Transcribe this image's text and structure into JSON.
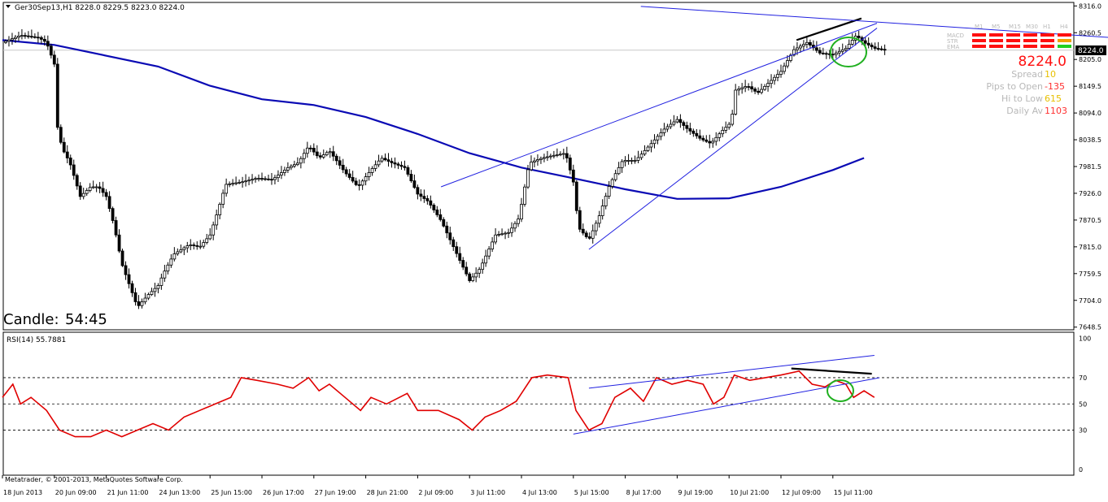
{
  "main_header": "Ger30Sep13,H1  8228.0 8229.5 8223.0 8224.0",
  "rsi_header": "RSI(14) 55.7881",
  "candle_timer": {
    "label": "Candle:",
    "value": "54:45"
  },
  "copyright": "Metatrader, © 2001-2013, MetaQuotes Software Corp.",
  "current_price_tag": "8224.0",
  "colors": {
    "candles": "#000000",
    "ma": "#0a0ab4",
    "trendlines": "#2020e0",
    "rsi": "#e00000",
    "circle": "#20b020",
    "price_line": "#c8c8c8"
  },
  "panel": {
    "timeframes": [
      "M1",
      "M5",
      "M15",
      "M30",
      "H1",
      "H4"
    ],
    "indicators": [
      "MACD",
      "STR",
      "EMA"
    ],
    "signals": [
      [
        "red",
        "red",
        "red",
        "red",
        "red",
        "red"
      ],
      [
        "red",
        "red",
        "red",
        "red",
        "red",
        "orange"
      ],
      [
        "red",
        "red",
        "red",
        "red",
        "red",
        "green"
      ]
    ],
    "big_price": "8224.0",
    "stats": [
      {
        "label": "Spread",
        "value": "10",
        "color": "#e8c000"
      },
      {
        "label": "Pips to Open",
        "value": "-135",
        "color": "#ff3030"
      },
      {
        "label": "Hi to Low",
        "value": "615",
        "color": "#e8c000"
      },
      {
        "label": "Daily Av",
        "value": "1103",
        "color": "#ff3030"
      }
    ]
  },
  "chart_data": [
    {
      "type": "candlestick",
      "symbol": "Ger30Sep13",
      "timeframe": "H1",
      "ohlc_last": {
        "open": 8228.0,
        "high": 8229.5,
        "low": 8223.0,
        "close": 8224.0
      },
      "y_tick_labels": [
        "8316.0",
        "8260.5",
        "8205.0",
        "8149.5",
        "8094.0",
        "8038.5",
        "7981.5",
        "7926.0",
        "7870.5",
        "7815.0",
        "7759.5",
        "7704.0",
        "7648.5"
      ],
      "x_tick_labels": [
        "18 Jun 2013",
        "20 Jun 09:00",
        "21 Jun 11:00",
        "24 Jun 13:00",
        "25 Jun 15:00",
        "26 Jun 17:00",
        "27 Jun 19:00",
        "28 Jun 21:00",
        "2 Jul 09:00",
        "3 Jul 11:00",
        "4 Jul 13:00",
        "5 Jul 15:00",
        "8 Jul 17:00",
        "9 Jul 19:00",
        "10 Jul 21:00",
        "12 Jul 09:00",
        "15 Jul 11:00"
      ],
      "ylim": [
        7630,
        8325
      ],
      "close_path": [
        [
          0,
          8240
        ],
        [
          0.35,
          8255
        ],
        [
          0.7,
          8250
        ],
        [
          0.85,
          8240
        ],
        [
          1.0,
          8195
        ],
        [
          1.05,
          8070
        ],
        [
          1.15,
          8020
        ],
        [
          1.3,
          7990
        ],
        [
          1.5,
          7920
        ],
        [
          1.7,
          7940
        ],
        [
          1.85,
          7940
        ],
        [
          2.0,
          7920
        ],
        [
          2.15,
          7860
        ],
        [
          2.3,
          7780
        ],
        [
          2.6,
          7690
        ],
        [
          2.8,
          7715
        ],
        [
          3.0,
          7735
        ],
        [
          3.1,
          7760
        ],
        [
          3.3,
          7800
        ],
        [
          3.6,
          7820
        ],
        [
          3.8,
          7815
        ],
        [
          4.0,
          7840
        ],
        [
          4.15,
          7890
        ],
        [
          4.3,
          7945
        ],
        [
          4.6,
          7950
        ],
        [
          4.9,
          7958
        ],
        [
          5.2,
          7955
        ],
        [
          5.5,
          7980
        ],
        [
          5.7,
          7990
        ],
        [
          5.9,
          8025
        ],
        [
          6.1,
          8000
        ],
        [
          6.3,
          8015
        ],
        [
          6.6,
          7970
        ],
        [
          6.85,
          7940
        ],
        [
          7.1,
          7975
        ],
        [
          7.3,
          8000
        ],
        [
          7.5,
          7990
        ],
        [
          7.75,
          7980
        ],
        [
          8.0,
          7925
        ],
        [
          8.2,
          7910
        ],
        [
          8.45,
          7870
        ],
        [
          8.8,
          7790
        ],
        [
          9.0,
          7745
        ],
        [
          9.2,
          7770
        ],
        [
          9.5,
          7840
        ],
        [
          9.75,
          7845
        ],
        [
          9.95,
          7875
        ],
        [
          10.15,
          7990
        ],
        [
          10.4,
          8000
        ],
        [
          10.6,
          8005
        ],
        [
          10.85,
          8010
        ],
        [
          11.0,
          7950
        ],
        [
          11.1,
          7855
        ],
        [
          11.3,
          7830
        ],
        [
          11.5,
          7880
        ],
        [
          11.7,
          7945
        ],
        [
          11.95,
          7995
        ],
        [
          12.2,
          7995
        ],
        [
          12.5,
          8030
        ],
        [
          12.75,
          8060
        ],
        [
          13.0,
          8080
        ],
        [
          13.2,
          8060
        ],
        [
          13.45,
          8040
        ],
        [
          13.65,
          8030
        ],
        [
          13.85,
          8055
        ],
        [
          14.05,
          8075
        ],
        [
          14.1,
          8140
        ],
        [
          14.35,
          8150
        ],
        [
          14.55,
          8135
        ],
        [
          14.8,
          8160
        ],
        [
          15.0,
          8180
        ],
        [
          15.25,
          8225
        ],
        [
          15.5,
          8240
        ],
        [
          15.75,
          8218
        ],
        [
          16.0,
          8215
        ],
        [
          16.25,
          8228
        ],
        [
          16.45,
          8255
        ],
        [
          16.6,
          8240
        ],
        [
          16.8,
          8228
        ],
        [
          17.05,
          8224
        ]
      ],
      "moving_average": [
        [
          0,
          8245
        ],
        [
          1.0,
          8235
        ],
        [
          3.0,
          8190
        ],
        [
          4.0,
          8150
        ],
        [
          5.0,
          8122
        ],
        [
          6.0,
          8110
        ],
        [
          7.0,
          8085
        ],
        [
          8.0,
          8050
        ],
        [
          9.0,
          8010
        ],
        [
          10.0,
          7980
        ],
        [
          11.0,
          7958
        ],
        [
          12.0,
          7935
        ],
        [
          13.0,
          7915
        ],
        [
          14.0,
          7916
        ],
        [
          15.0,
          7940
        ],
        [
          16.0,
          7975
        ],
        [
          16.6,
          8000
        ]
      ],
      "trendlines": [
        {
          "color": "black",
          "from": [
            15.3,
            8245
          ],
          "to": [
            16.55,
            8290
          ]
        },
        {
          "color": "blue",
          "from": [
            12.3,
            8315
          ],
          "to": [
            21.4,
            8250
          ]
        },
        {
          "color": "blue",
          "from": [
            8.45,
            7940
          ],
          "to": [
            16.85,
            8280
          ]
        },
        {
          "color": "blue",
          "from": [
            11.3,
            7810
          ],
          "to": [
            16.85,
            8270
          ]
        }
      ],
      "current_price": 8224.0
    },
    {
      "type": "line",
      "name": "RSI(14)",
      "last_value": 55.7881,
      "y_tick_labels": [
        "100",
        "70",
        "50",
        "30",
        "0"
      ],
      "ylim": [
        0,
        100
      ],
      "levels": [
        70,
        50,
        30
      ],
      "values": [
        [
          0,
          55
        ],
        [
          0.2,
          65
        ],
        [
          0.35,
          50
        ],
        [
          0.55,
          55
        ],
        [
          0.85,
          45
        ],
        [
          1.1,
          30
        ],
        [
          1.4,
          25
        ],
        [
          1.7,
          25
        ],
        [
          2.0,
          30
        ],
        [
          2.3,
          25
        ],
        [
          2.6,
          30
        ],
        [
          2.9,
          35
        ],
        [
          3.2,
          30
        ],
        [
          3.5,
          40
        ],
        [
          3.8,
          45
        ],
        [
          4.1,
          50
        ],
        [
          4.4,
          55
        ],
        [
          4.6,
          70
        ],
        [
          4.9,
          68
        ],
        [
          5.3,
          65
        ],
        [
          5.6,
          62
        ],
        [
          5.9,
          70
        ],
        [
          6.1,
          60
        ],
        [
          6.3,
          65
        ],
        [
          6.6,
          55
        ],
        [
          6.9,
          45
        ],
        [
          7.1,
          55
        ],
        [
          7.4,
          50
        ],
        [
          7.8,
          58
        ],
        [
          8.0,
          45
        ],
        [
          8.4,
          45
        ],
        [
          8.8,
          38
        ],
        [
          9.05,
          30
        ],
        [
          9.3,
          40
        ],
        [
          9.6,
          45
        ],
        [
          9.9,
          52
        ],
        [
          10.2,
          70
        ],
        [
          10.5,
          72
        ],
        [
          10.9,
          70
        ],
        [
          11.05,
          45
        ],
        [
          11.3,
          30
        ],
        [
          11.55,
          35
        ],
        [
          11.8,
          55
        ],
        [
          12.1,
          62
        ],
        [
          12.35,
          52
        ],
        [
          12.6,
          70
        ],
        [
          12.9,
          65
        ],
        [
          13.2,
          68
        ],
        [
          13.5,
          65
        ],
        [
          13.7,
          50
        ],
        [
          13.9,
          55
        ],
        [
          14.1,
          72
        ],
        [
          14.4,
          68
        ],
        [
          14.7,
          70
        ],
        [
          15.0,
          72
        ],
        [
          15.35,
          75
        ],
        [
          15.6,
          65
        ],
        [
          15.85,
          63
        ],
        [
          16.05,
          68
        ],
        [
          16.25,
          65
        ],
        [
          16.4,
          55
        ],
        [
          16.6,
          60
        ],
        [
          16.8,
          55
        ]
      ],
      "trendlines": [
        {
          "color": "black",
          "from": [
            15.2,
            77
          ],
          "to": [
            16.75,
            73
          ]
        },
        {
          "color": "blue",
          "from": [
            11.3,
            62
          ],
          "to": [
            16.8,
            87
          ]
        },
        {
          "color": "blue",
          "from": [
            11.0,
            27
          ],
          "to": [
            16.9,
            70
          ]
        }
      ]
    }
  ]
}
